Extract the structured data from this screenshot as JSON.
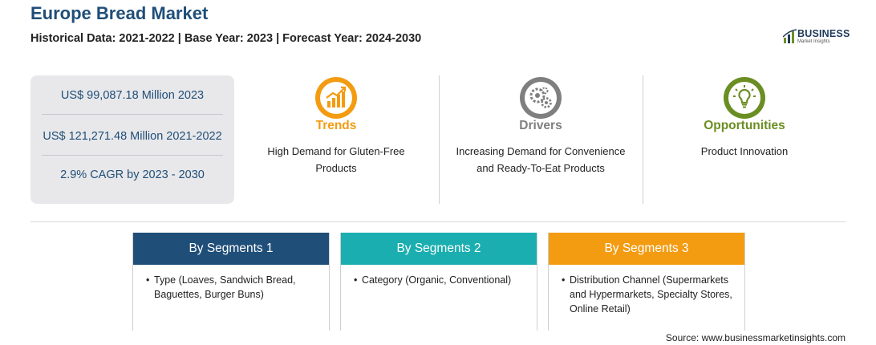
{
  "header": {
    "title": "Europe Bread Market",
    "subtitle": "Historical Data: 2021-2022 | Base Year: 2023 | Forecast Year: 2024-2030"
  },
  "logo": {
    "name": "BUSINESS",
    "tagline": "Market Insights",
    "icon": "bar-chart-logo-icon"
  },
  "stats": [
    {
      "text": "US$ 99,087.18 Million 2023"
    },
    {
      "text": "US$ 121,271.48 Million 2021-2022"
    },
    {
      "text": "2.9% CAGR by 2023 - 2030"
    }
  ],
  "pillars": [
    {
      "heading": "Trends",
      "icon": "trend-chart-icon",
      "color": "#f39c12",
      "description": "High Demand for Gluten-Free Products"
    },
    {
      "heading": "Drivers",
      "icon": "gears-icon",
      "color": "#7f7f7f",
      "description": "Increasing Demand for Convenience and Ready-To-Eat Products"
    },
    {
      "heading": "Opportunities",
      "icon": "lightbulb-icon",
      "color": "#6b8e23",
      "description": "Product Innovation"
    }
  ],
  "segments": [
    {
      "title": "By Segments 1",
      "color": "#1f4e79",
      "items": [
        "Type (Loaves, Sandwich Bread, Baguettes, Burger Buns)"
      ]
    },
    {
      "title": "By Segments 2",
      "color": "#1aaeb0",
      "items": [
        "Category (Organic, Conventional)"
      ]
    },
    {
      "title": "By Segments 3",
      "color": "#f39c12",
      "items": [
        "Distribution Channel (Supermarkets and Hypermarkets, Specialty Stores, Online Retail)"
      ]
    }
  ],
  "footer": {
    "source": "Source: www.businessmarketinsights.com"
  }
}
